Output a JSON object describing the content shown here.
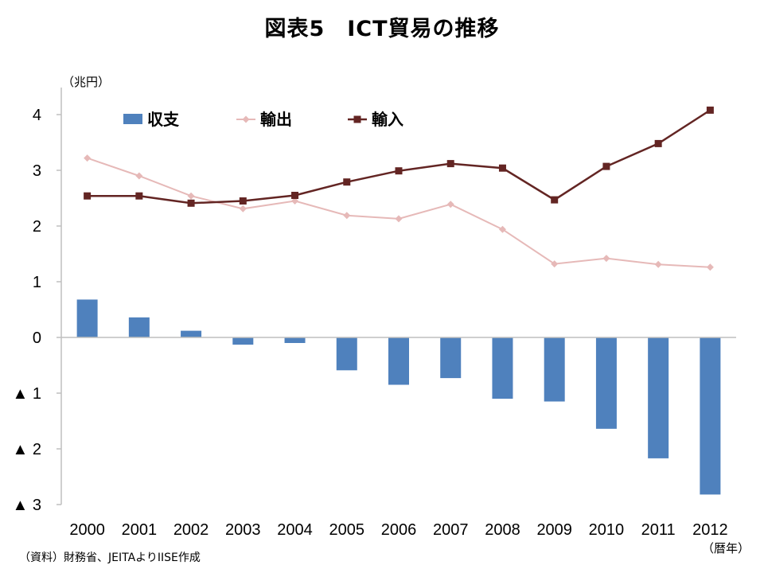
{
  "title": "図表5　ICT貿易の推移",
  "y_unit": "（兆円）",
  "x_unit": "（暦年）",
  "source": "（資料）財務省、JEITAよりIISE作成",
  "chart_data": {
    "type": "bar+line",
    "title": "図表5　ICT貿易の推移",
    "categories": [
      "2000",
      "2001",
      "2002",
      "2003",
      "2004",
      "2005",
      "2006",
      "2007",
      "2008",
      "2009",
      "2010",
      "2011",
      "2012"
    ],
    "ylim": [
      -3,
      4.5
    ],
    "y_ticks": [
      {
        "value": 4,
        "label": "4"
      },
      {
        "value": 3,
        "label": "3"
      },
      {
        "value": 2,
        "label": "2"
      },
      {
        "value": 1,
        "label": "1"
      },
      {
        "value": 0,
        "label": "0"
      },
      {
        "value": -1,
        "label": "▲ 1"
      },
      {
        "value": -2,
        "label": "▲ 2"
      },
      {
        "value": -3,
        "label": "▲ 3"
      }
    ],
    "grid": false,
    "legend_position": "top-left",
    "series": [
      {
        "name": "収支",
        "type": "bar",
        "color": "#4f81bd",
        "values": [
          0.68,
          0.36,
          0.12,
          -0.13,
          -0.1,
          -0.59,
          -0.85,
          -0.73,
          -1.1,
          -1.15,
          -1.64,
          -2.17,
          -2.82
        ]
      },
      {
        "name": "輸出",
        "type": "line",
        "color": "#e6b9b8",
        "marker": "diamond",
        "values": [
          3.22,
          2.9,
          2.54,
          2.31,
          2.45,
          2.19,
          2.13,
          2.39,
          1.94,
          1.32,
          1.42,
          1.31,
          1.26
        ]
      },
      {
        "name": "輸入",
        "type": "line",
        "color": "#632523",
        "marker": "square",
        "values": [
          2.54,
          2.54,
          2.41,
          2.45,
          2.55,
          2.79,
          2.99,
          3.12,
          3.04,
          2.47,
          3.07,
          3.48,
          4.08
        ]
      }
    ]
  }
}
